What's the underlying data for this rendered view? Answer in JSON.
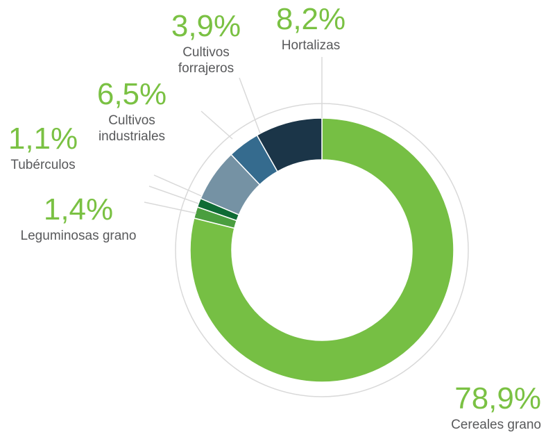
{
  "chart_data": {
    "type": "donut",
    "categories": [
      "Cereales grano",
      "Leguminosas grano",
      "Tubérculos",
      "Cultivos industriales",
      "Cultivos forrajeros",
      "Hortalizas"
    ],
    "values": [
      78.9,
      1.4,
      1.1,
      6.5,
      3.9,
      8.2
    ],
    "value_labels": [
      "78,9%",
      "1,4%",
      "1,1%",
      "6,5%",
      "3,9%",
      "8,2%"
    ],
    "colors": [
      "#76bf44",
      "#4a9e3f",
      "#0e6b35",
      "#7592a4",
      "#356b8e",
      "#1b3548"
    ]
  }
}
